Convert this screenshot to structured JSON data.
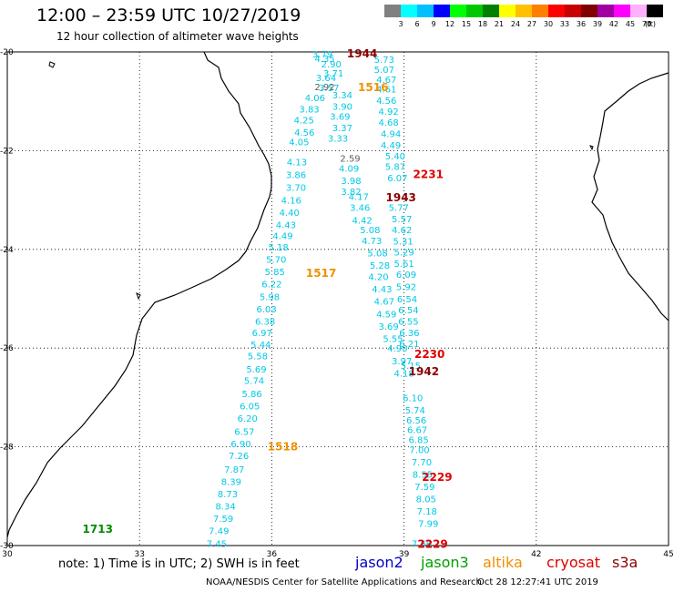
{
  "title": "12:00 – 23:59 UTC 10/27/2019",
  "subtitle": "12 hour collection of altimeter wave heights",
  "colorbar": {
    "unit": "(ft)",
    "swatches": [
      "#808080",
      "#00ffff",
      "#00c0ff",
      "#0000ff",
      "#00ff00",
      "#00c800",
      "#008000",
      "#ffff00",
      "#ffc000",
      "#ff8000",
      "#ff0000",
      "#c80000",
      "#800000",
      "#a000a0",
      "#ff00ff",
      "#ffb0ff",
      "#000000"
    ],
    "labels": [
      "3",
      "6",
      "9",
      "12",
      "15",
      "18",
      "21",
      "24",
      "27",
      "30",
      "33",
      "36",
      "39",
      "42",
      "45",
      "70"
    ]
  },
  "axes": {
    "lon_ticks": [
      "30",
      "33",
      "36",
      "39",
      "42",
      "45"
    ],
    "lat_ticks": [
      "-20",
      "-22",
      "-24",
      "-26",
      "-28",
      "-30"
    ]
  },
  "chart_data": {
    "type": "scatter",
    "xlabel": "",
    "ylabel": "",
    "xlim": [
      30,
      45
    ],
    "ylim": [
      -30,
      -20
    ],
    "units": "ft",
    "series": [
      {
        "name": "jason2",
        "color": "#00c8e6",
        "values": [
          [
            37.15,
            -20.04,
            "3.79"
          ],
          [
            37.2,
            -20.13,
            "4.35"
          ],
          [
            37.35,
            -20.24,
            "2.90"
          ],
          [
            37.4,
            -20.42,
            "3.71"
          ],
          [
            37.23,
            -20.52,
            "3.64"
          ],
          [
            37.3,
            -20.72,
            "3.57"
          ],
          [
            37.6,
            -20.87,
            "3.34"
          ],
          [
            36.98,
            -20.92,
            "4.06"
          ],
          [
            37.6,
            -21.1,
            "3.90"
          ],
          [
            36.85,
            -21.15,
            "3.83"
          ],
          [
            37.55,
            -21.3,
            "3.69"
          ],
          [
            36.73,
            -21.37,
            "4.25"
          ],
          [
            37.6,
            -21.53,
            "3.37"
          ],
          [
            36.74,
            -21.62,
            "4.56"
          ],
          [
            37.5,
            -21.74,
            "3.33"
          ],
          [
            36.62,
            -21.82,
            "4.05"
          ],
          [
            36.57,
            -22.22,
            "4.13"
          ],
          [
            37.75,
            -22.35,
            "4.09"
          ],
          [
            36.55,
            -22.48,
            "3.86"
          ],
          [
            37.8,
            -22.6,
            "3.98"
          ],
          [
            36.55,
            -22.74,
            "3.70"
          ],
          [
            37.8,
            -22.82,
            "3.82"
          ],
          [
            37.97,
            -22.92,
            "4.17"
          ],
          [
            36.44,
            -23.0,
            "4.16"
          ],
          [
            38.0,
            -23.15,
            "3.46"
          ],
          [
            36.4,
            -23.25,
            "4.40"
          ],
          [
            38.05,
            -23.4,
            "4.42"
          ],
          [
            36.32,
            -23.5,
            "4.43"
          ],
          [
            38.23,
            -23.6,
            "5.08"
          ],
          [
            36.25,
            -23.72,
            "4.49"
          ],
          [
            38.27,
            -23.82,
            "4.73"
          ],
          [
            36.15,
            -23.95,
            "5.18"
          ],
          [
            38.4,
            -24.07,
            "5.08"
          ],
          [
            36.1,
            -24.2,
            "5.70"
          ],
          [
            38.45,
            -24.32,
            "5.28"
          ],
          [
            36.07,
            -24.45,
            "5.85"
          ],
          [
            38.42,
            -24.55,
            "4.20"
          ],
          [
            36.0,
            -24.7,
            "6.22"
          ],
          [
            38.5,
            -24.8,
            "4.43"
          ],
          [
            35.95,
            -24.95,
            "5.98"
          ],
          [
            38.55,
            -25.05,
            "4.67"
          ],
          [
            35.88,
            -25.2,
            "6.03"
          ],
          [
            38.6,
            -25.3,
            "4.59"
          ],
          [
            35.85,
            -25.45,
            "6.38"
          ],
          [
            38.65,
            -25.55,
            "3.69"
          ],
          [
            35.78,
            -25.68,
            "6.97"
          ],
          [
            38.75,
            -25.8,
            "5.55"
          ],
          [
            35.75,
            -25.92,
            "5.44"
          ],
          [
            38.85,
            -26.0,
            "4.90"
          ],
          [
            35.68,
            -26.15,
            "5.58"
          ],
          [
            38.95,
            -26.25,
            "3.97"
          ],
          [
            35.65,
            -26.42,
            "5.69"
          ],
          [
            39.0,
            -26.5,
            "4.18"
          ],
          [
            35.6,
            -26.65,
            "5.74"
          ],
          [
            35.55,
            -26.92,
            "5.86"
          ],
          [
            35.5,
            -27.17,
            "6.05"
          ],
          [
            35.45,
            -27.42,
            "6.20"
          ],
          [
            35.38,
            -27.68,
            "6.57"
          ],
          [
            35.3,
            -27.93,
            "6.90"
          ],
          [
            35.25,
            -28.17,
            "7.26"
          ],
          [
            35.15,
            -28.45,
            "7.87"
          ],
          [
            35.08,
            -28.7,
            "8.39"
          ],
          [
            35.0,
            -28.95,
            "8.73"
          ],
          [
            34.95,
            -29.2,
            "8.34"
          ],
          [
            34.9,
            -29.45,
            "7.59"
          ],
          [
            34.8,
            -29.7,
            "7.49"
          ],
          [
            34.75,
            -29.95,
            "7.45"
          ],
          [
            38.55,
            -20.15,
            "5.73"
          ],
          [
            38.55,
            -20.35,
            "5.07"
          ],
          [
            38.6,
            -20.55,
            "4.67"
          ],
          [
            38.6,
            -20.75,
            "4.61"
          ],
          [
            38.6,
            -20.98,
            "4.56"
          ],
          [
            38.65,
            -21.2,
            "4.92"
          ],
          [
            38.65,
            -21.42,
            "4.68"
          ],
          [
            38.7,
            -21.65,
            "4.94"
          ],
          [
            38.7,
            -21.88,
            "4.49"
          ],
          [
            38.8,
            -22.1,
            "5.40"
          ],
          [
            38.8,
            -22.32,
            "5.87"
          ],
          [
            38.85,
            -22.55,
            "6.07"
          ],
          [
            38.88,
            -23.15,
            "5.77"
          ],
          [
            38.95,
            -23.38,
            "5.57"
          ],
          [
            38.95,
            -23.6,
            "4.62"
          ],
          [
            38.98,
            -23.83,
            "5.31"
          ],
          [
            39.0,
            -24.05,
            "5.29"
          ],
          [
            39.0,
            -24.28,
            "5.61"
          ],
          [
            39.05,
            -24.5,
            "6.09"
          ],
          [
            39.05,
            -24.75,
            "5.92"
          ],
          [
            39.07,
            -25.0,
            "6.54"
          ],
          [
            39.1,
            -25.22,
            "6.54"
          ],
          [
            39.1,
            -25.45,
            "6.55"
          ],
          [
            39.12,
            -25.68,
            "6.36"
          ],
          [
            39.12,
            -25.9,
            "6.21"
          ],
          [
            39.15,
            -26.35,
            "5.15"
          ],
          [
            39.2,
            -27.0,
            "6.10"
          ],
          [
            39.25,
            -27.25,
            "5.74"
          ],
          [
            39.28,
            -27.45,
            "6.56"
          ],
          [
            39.3,
            -27.65,
            "6.67"
          ],
          [
            39.33,
            -27.85,
            "6.85"
          ],
          [
            39.35,
            -28.05,
            "7.00"
          ],
          [
            39.4,
            -28.3,
            "7.70"
          ],
          [
            39.42,
            -28.55,
            "8.55"
          ],
          [
            39.47,
            -28.8,
            "7.59"
          ],
          [
            39.5,
            -29.05,
            "8.05"
          ],
          [
            39.52,
            -29.3,
            "7.18"
          ],
          [
            39.55,
            -29.55,
            "7.99"
          ],
          [
            39.4,
            -29.95,
            "7.66"
          ]
        ]
      },
      {
        "name": "jason3",
        "color": "#008c00",
        "values": [
          [
            32.05,
            -29.67,
            "1713"
          ]
        ]
      },
      {
        "name": "altika",
        "color": "#f09000",
        "values": [
          [
            38.3,
            -20.72,
            "1516"
          ],
          [
            37.12,
            -24.48,
            "1517"
          ],
          [
            36.25,
            -28.0,
            "1518"
          ]
        ]
      },
      {
        "name": "cryosat",
        "color": "#e00000",
        "values": [
          [
            39.55,
            -22.48,
            "2231"
          ],
          [
            39.58,
            -26.13,
            "2230"
          ],
          [
            39.75,
            -28.62,
            "2229"
          ],
          [
            39.65,
            -29.97,
            "2229"
          ]
        ]
      },
      {
        "name": "s3a",
        "color": "#8b0000",
        "values": [
          [
            38.05,
            -20.04,
            "1944"
          ],
          [
            38.93,
            -22.95,
            "1943"
          ],
          [
            39.45,
            -26.48,
            "1942"
          ]
        ]
      }
    ],
    "grey_labels": [
      [
        37.2,
        -20.7,
        "2.92"
      ],
      [
        37.78,
        -22.15,
        "2.59"
      ]
    ]
  },
  "note": "note:  1) Time is in UTC;  2) SWH is in feet",
  "missions": [
    {
      "name": "jason2",
      "color": "#0000c8"
    },
    {
      "name": "jason3",
      "color": "#00a000"
    },
    {
      "name": "altika",
      "color": "#f09000"
    },
    {
      "name": "cryosat",
      "color": "#e00000"
    },
    {
      "name": "s3a",
      "color": "#8b0000"
    }
  ],
  "footer_left": "NOAA/NESDIS Center for Satellite Applications and Research",
  "footer_right": "Oct 28 12:27:41 UTC 2019"
}
